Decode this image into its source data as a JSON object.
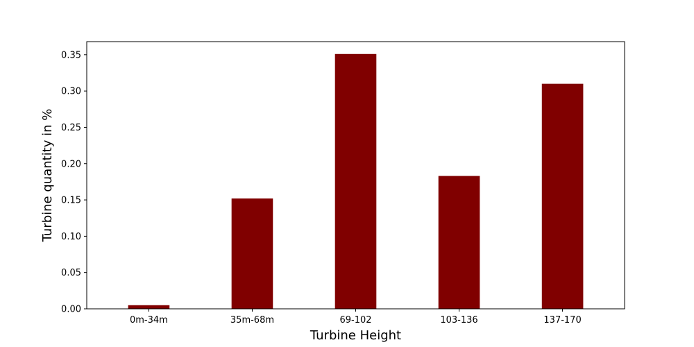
{
  "chart_data": {
    "type": "bar",
    "xlabel": "Turbine Height",
    "ylabel": "Turbine quantity in %",
    "categories": [
      "0m-34m",
      "35m-68m",
      "69-102",
      "103-136",
      "137-170"
    ],
    "values": [
      0.005,
      0.152,
      0.351,
      0.183,
      0.31
    ],
    "ylim": [
      0,
      0.368
    ],
    "yticks": [
      0.0,
      0.05,
      0.1,
      0.15,
      0.2,
      0.25,
      0.3,
      0.35
    ],
    "ytick_labels": [
      "0.00",
      "0.05",
      "0.10",
      "0.15",
      "0.20",
      "0.25",
      "0.30",
      "0.35"
    ],
    "bar_color": "#800000",
    "grid": false,
    "legend": "none"
  }
}
